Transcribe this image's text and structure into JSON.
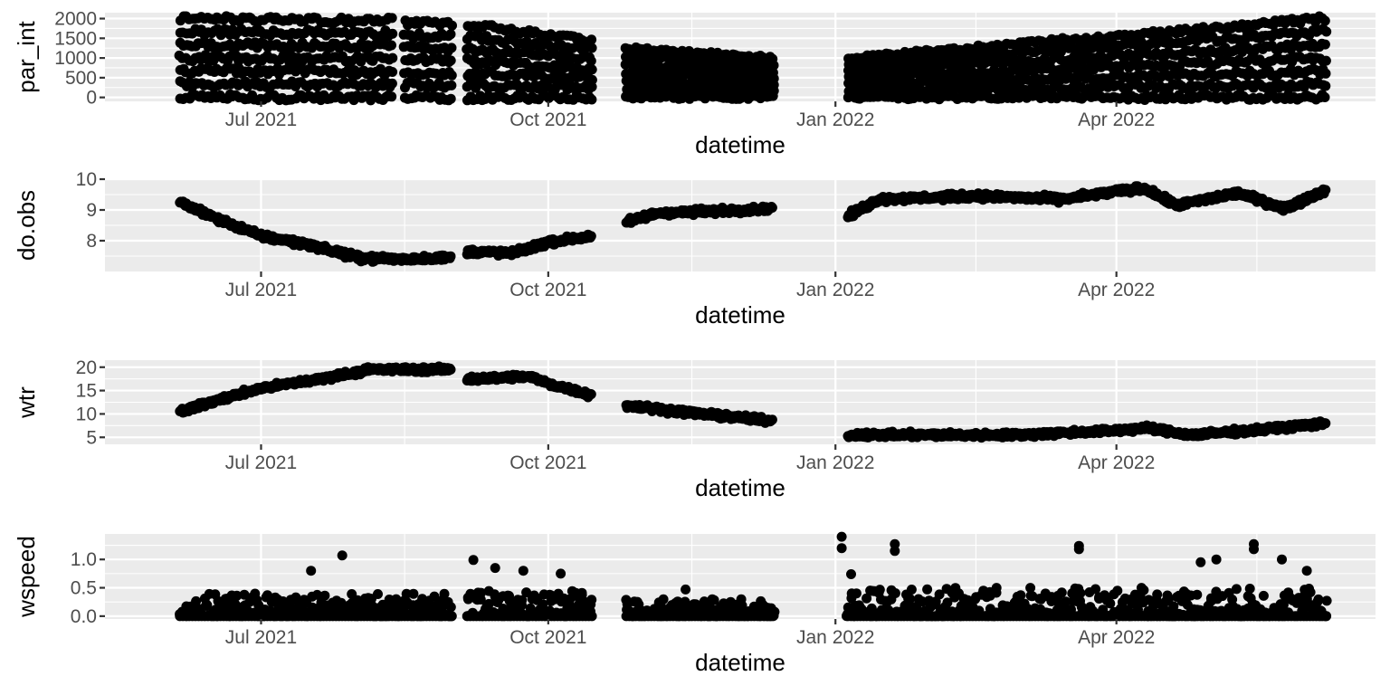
{
  "chart_data": [
    {
      "type": "scatter",
      "ylabel": "par_int",
      "xlabel": "datetime",
      "xlim": [
        "2021-05-12",
        "2022-06-23"
      ],
      "ylim": [
        -100,
        2150
      ],
      "x_ticks": [
        {
          "date": "2021-07-01",
          "label": "Jul 2021"
        },
        {
          "date": "2021-10-01",
          "label": "Oct 2021"
        },
        {
          "date": "2022-01-01",
          "label": "Jan 2022"
        },
        {
          "date": "2022-04-01",
          "label": "Apr 2022"
        }
      ],
      "y_ticks": [
        0,
        500,
        1000,
        1500,
        2000
      ],
      "y_tick_labels": [
        "0",
        "500",
        "1000",
        "1500",
        "2000"
      ],
      "segments": [
        {
          "start": "2021-06-05",
          "end": "2021-08-12",
          "min": 0,
          "max": 2000,
          "max_end": 1950
        },
        {
          "start": "2021-08-16",
          "end": "2021-08-31",
          "min": 0,
          "max": 1900,
          "max_end": 1850
        },
        {
          "start": "2021-09-05",
          "end": "2021-10-15",
          "min": 0,
          "max": 1850,
          "max_end": 1450
        },
        {
          "start": "2021-10-26",
          "end": "2021-12-12",
          "min": 0,
          "max": 1250,
          "max_end": 1000
        },
        {
          "start": "2022-01-05",
          "end": "2022-06-07",
          "min": 0,
          "max": 1000,
          "max_end": 2000
        }
      ]
    },
    {
      "type": "scatter",
      "ylabel": "do.obs",
      "xlabel": "datetime",
      "xlim": [
        "2021-05-12",
        "2022-06-23"
      ],
      "ylim": [
        7.0,
        10.0
      ],
      "x_ticks": [
        {
          "date": "2021-07-01",
          "label": "Jul 2021"
        },
        {
          "date": "2021-10-01",
          "label": "Oct 2021"
        },
        {
          "date": "2022-01-01",
          "label": "Jan 2022"
        },
        {
          "date": "2022-04-01",
          "label": "Apr 2022"
        }
      ],
      "y_ticks": [
        8,
        9,
        10
      ],
      "y_tick_labels": [
        "8",
        "9",
        "10"
      ],
      "trend": [
        {
          "date": "2021-06-05",
          "value": 9.25
        },
        {
          "date": "2021-06-15",
          "value": 8.8
        },
        {
          "date": "2021-07-01",
          "value": 8.15
        },
        {
          "date": "2021-07-15",
          "value": 7.9
        },
        {
          "date": "2021-08-01",
          "value": 7.45
        },
        {
          "date": "2021-08-15",
          "value": 7.4
        },
        {
          "date": "2021-08-31",
          "value": 7.45
        },
        {
          "date": "2021-09-05",
          "value": 7.65
        },
        {
          "date": "2021-09-20",
          "value": 7.6
        },
        {
          "date": "2021-10-01",
          "value": 7.95
        },
        {
          "date": "2021-10-15",
          "value": 8.15
        },
        {
          "date": "2021-10-26",
          "value": 8.6
        },
        {
          "date": "2021-11-05",
          "value": 8.9
        },
        {
          "date": "2021-11-20",
          "value": 8.95
        },
        {
          "date": "2021-12-12",
          "value": 9.05
        },
        {
          "date": "2022-01-05",
          "value": 8.8
        },
        {
          "date": "2022-01-15",
          "value": 9.35
        },
        {
          "date": "2022-02-15",
          "value": 9.45
        },
        {
          "date": "2022-03-15",
          "value": 9.35
        },
        {
          "date": "2022-04-01",
          "value": 9.6
        },
        {
          "date": "2022-04-10",
          "value": 9.7
        },
        {
          "date": "2022-04-20",
          "value": 9.15
        },
        {
          "date": "2022-05-10",
          "value": 9.55
        },
        {
          "date": "2022-05-25",
          "value": 9.05
        },
        {
          "date": "2022-06-07",
          "value": 9.65
        }
      ],
      "gaps": [
        [
          "2021-08-31",
          "2021-09-05"
        ],
        [
          "2021-10-15",
          "2021-10-26"
        ],
        [
          "2021-12-12",
          "2022-01-05"
        ]
      ]
    },
    {
      "type": "scatter",
      "ylabel": "wtr",
      "xlabel": "datetime",
      "xlim": [
        "2021-05-12",
        "2022-06-23"
      ],
      "ylim": [
        3.5,
        21.5
      ],
      "x_ticks": [
        {
          "date": "2021-07-01",
          "label": "Jul 2021"
        },
        {
          "date": "2021-10-01",
          "label": "Oct 2021"
        },
        {
          "date": "2022-01-01",
          "label": "Jan 2022"
        },
        {
          "date": "2022-04-01",
          "label": "Apr 2022"
        }
      ],
      "y_ticks": [
        5,
        10,
        15,
        20
      ],
      "y_tick_labels": [
        "5",
        "10",
        "15",
        "20"
      ],
      "trend": [
        {
          "date": "2021-06-05",
          "value": 10.5
        },
        {
          "date": "2021-06-20",
          "value": 13.5
        },
        {
          "date": "2021-07-01",
          "value": 15.5
        },
        {
          "date": "2021-07-20",
          "value": 17.5
        },
        {
          "date": "2021-08-05",
          "value": 19.5
        },
        {
          "date": "2021-08-31",
          "value": 19.5
        },
        {
          "date": "2021-09-05",
          "value": 17.5
        },
        {
          "date": "2021-09-25",
          "value": 18.0
        },
        {
          "date": "2021-10-01",
          "value": 16.5
        },
        {
          "date": "2021-10-15",
          "value": 14.0
        },
        {
          "date": "2021-10-26",
          "value": 11.8
        },
        {
          "date": "2021-11-15",
          "value": 10.3
        },
        {
          "date": "2021-12-12",
          "value": 8.5
        },
        {
          "date": "2022-01-05",
          "value": 5.5
        },
        {
          "date": "2022-03-01",
          "value": 5.5
        },
        {
          "date": "2022-04-01",
          "value": 6.5
        },
        {
          "date": "2022-04-10",
          "value": 7.0
        },
        {
          "date": "2022-04-25",
          "value": 5.5
        },
        {
          "date": "2022-05-15",
          "value": 6.5
        },
        {
          "date": "2022-06-07",
          "value": 8.0
        }
      ],
      "gaps": [
        [
          "2021-08-31",
          "2021-09-05"
        ],
        [
          "2021-10-15",
          "2021-10-26"
        ],
        [
          "2021-12-12",
          "2022-01-05"
        ]
      ]
    },
    {
      "type": "scatter",
      "ylabel": "wspeed",
      "xlabel": "datetime",
      "xlim": [
        "2021-05-12",
        "2022-06-23"
      ],
      "ylim": [
        -0.05,
        1.45
      ],
      "x_ticks": [
        {
          "date": "2021-07-01",
          "label": "Jul 2021"
        },
        {
          "date": "2021-10-01",
          "label": "Oct 2021"
        },
        {
          "date": "2022-01-01",
          "label": "Jan 2022"
        },
        {
          "date": "2022-04-01",
          "label": "Apr 2022"
        }
      ],
      "y_ticks": [
        0.0,
        0.5,
        1.0
      ],
      "y_tick_labels": [
        "0.0",
        "0.5",
        "1.0"
      ],
      "segments": [
        {
          "start": "2021-06-05",
          "end": "2021-08-31",
          "max": 0.4
        },
        {
          "start": "2021-09-05",
          "end": "2021-10-15",
          "max": 0.45
        },
        {
          "start": "2021-10-26",
          "end": "2021-12-12",
          "max": 0.3
        },
        {
          "start": "2022-01-05",
          "end": "2022-06-07",
          "max": 0.5
        }
      ],
      "spikes": [
        {
          "date": "2021-07-27",
          "value": 1.07
        },
        {
          "date": "2021-07-17",
          "value": 0.8
        },
        {
          "date": "2021-09-07",
          "value": 0.99
        },
        {
          "date": "2021-09-14",
          "value": 0.85
        },
        {
          "date": "2021-09-23",
          "value": 0.8
        },
        {
          "date": "2021-10-05",
          "value": 0.75
        },
        {
          "date": "2021-11-14",
          "value": 0.47
        },
        {
          "date": "2022-01-03",
          "value": 1.4
        },
        {
          "date": "2022-01-03",
          "value": 1.2
        },
        {
          "date": "2022-01-06",
          "value": 0.74
        },
        {
          "date": "2022-01-20",
          "value": 1.27
        },
        {
          "date": "2022-01-20",
          "value": 1.15
        },
        {
          "date": "2022-03-20",
          "value": 1.24
        },
        {
          "date": "2022-03-20",
          "value": 1.18
        },
        {
          "date": "2022-04-28",
          "value": 0.95
        },
        {
          "date": "2022-05-03",
          "value": 1.0
        },
        {
          "date": "2022-05-15",
          "value": 1.27
        },
        {
          "date": "2022-05-15",
          "value": 1.18
        },
        {
          "date": "2022-05-24",
          "value": 1.0
        },
        {
          "date": "2022-06-01",
          "value": 0.8
        }
      ]
    }
  ]
}
